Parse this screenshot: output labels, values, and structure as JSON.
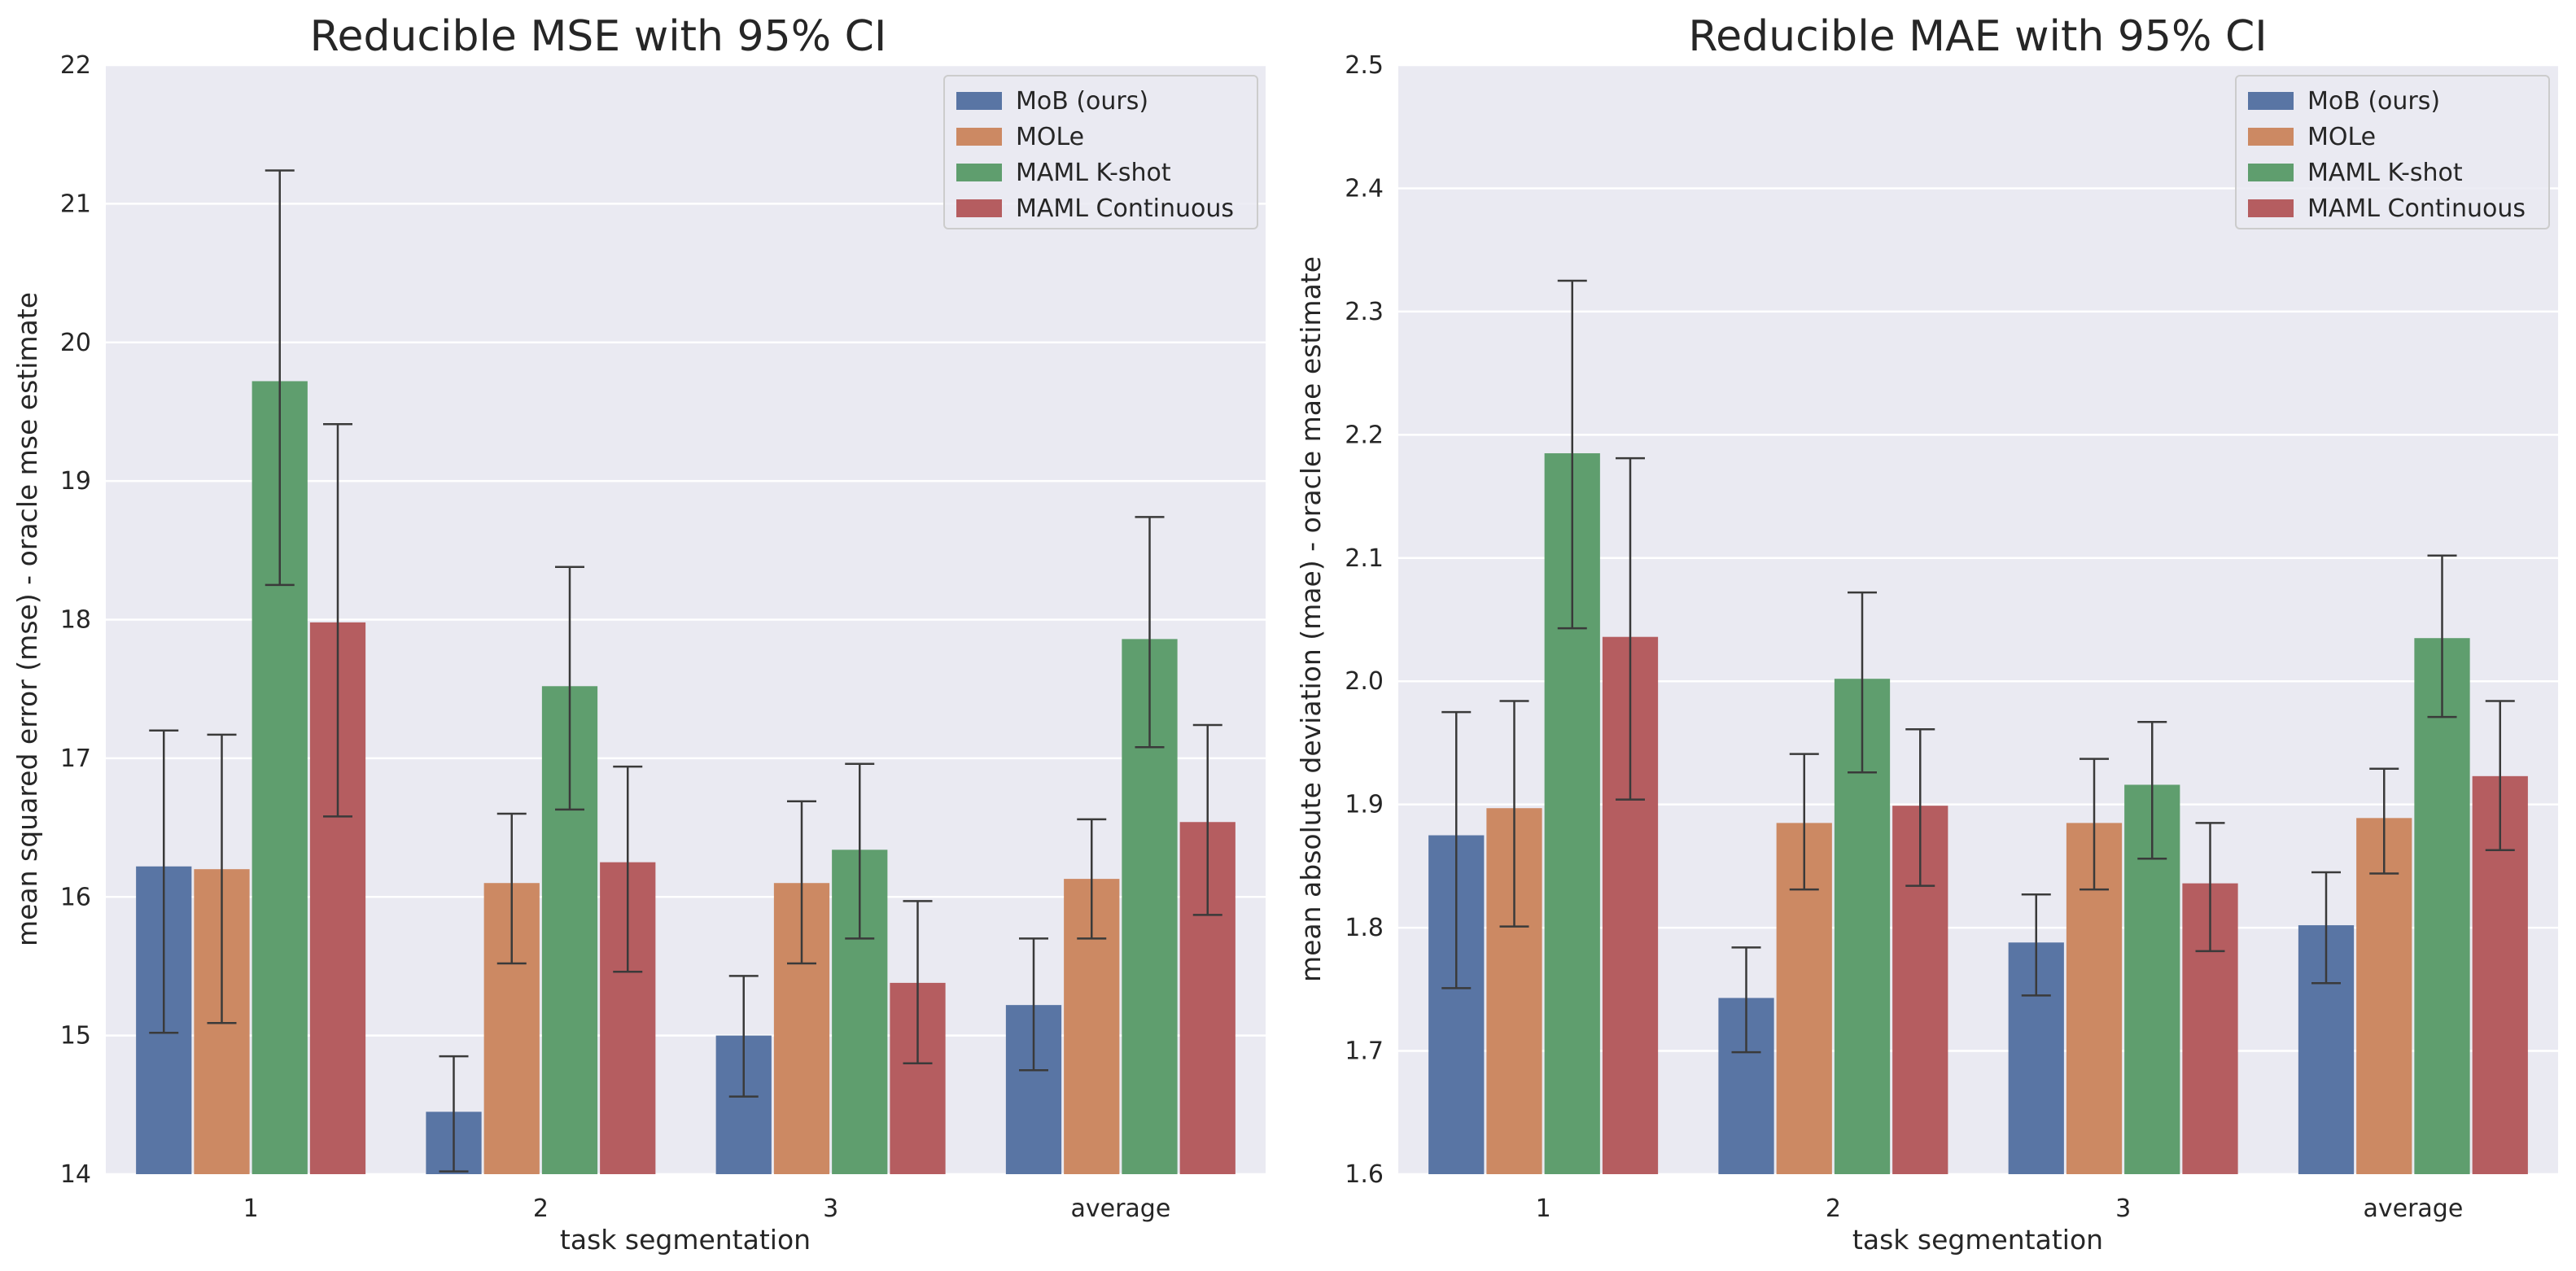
{
  "colors": {
    "plot_background": "#EAEAF2",
    "grid": "#FFFFFF",
    "error_bar": "#3A3A3A"
  },
  "chart_data": [
    {
      "type": "bar",
      "title": "Reducible MSE with 95% CI",
      "xlabel": "task segmentation",
      "ylabel": "mean squared error (mse) - oracle mse estimate",
      "categories": [
        "1",
        "2",
        "3",
        "average"
      ],
      "ylim": [
        14,
        22
      ],
      "yticks": [
        "14",
        "15",
        "16",
        "17",
        "18",
        "19",
        "20",
        "21",
        "22"
      ],
      "legend_position": "top-right",
      "series": [
        {
          "name": "MoB (ours)",
          "color": "#5975A4",
          "values": [
            16.22,
            14.45,
            15.0,
            15.22
          ],
          "ci_low": [
            15.02,
            14.02,
            14.56,
            14.75
          ],
          "ci_high": [
            17.2,
            14.85,
            15.43,
            15.7
          ]
        },
        {
          "name": "MOLe",
          "color": "#CC8963",
          "values": [
            16.2,
            16.1,
            16.1,
            16.13
          ],
          "ci_low": [
            15.09,
            15.52,
            15.52,
            15.7
          ],
          "ci_high": [
            17.17,
            16.6,
            16.69,
            16.56
          ]
        },
        {
          "name": "MAML K-shot",
          "color": "#5F9E6E",
          "values": [
            19.72,
            17.52,
            16.34,
            17.86
          ],
          "ci_low": [
            18.25,
            16.63,
            15.7,
            17.08
          ],
          "ci_high": [
            21.24,
            18.38,
            16.96,
            18.74
          ]
        },
        {
          "name": "MAML Continuous",
          "color": "#B55D60",
          "values": [
            17.98,
            16.25,
            15.38,
            16.54
          ],
          "ci_low": [
            16.58,
            15.46,
            14.8,
            15.87
          ],
          "ci_high": [
            19.41,
            16.94,
            15.97,
            17.24
          ]
        }
      ]
    },
    {
      "type": "bar",
      "title": "Reducible MAE with 95% CI",
      "xlabel": "task segmentation",
      "ylabel": "mean absolute deviation (mae) - oracle mae estimate",
      "categories": [
        "1",
        "2",
        "3",
        "average"
      ],
      "ylim": [
        1.6,
        2.5
      ],
      "yticks": [
        "1.6",
        "1.7",
        "1.8",
        "1.9",
        "2.0",
        "2.1",
        "2.2",
        "2.3",
        "2.4",
        "2.5"
      ],
      "legend_position": "top-right",
      "series": [
        {
          "name": "MoB (ours)",
          "color": "#5975A4",
          "values": [
            1.875,
            1.743,
            1.788,
            1.802
          ],
          "ci_low": [
            1.751,
            1.699,
            1.745,
            1.755
          ],
          "ci_high": [
            1.975,
            1.784,
            1.827,
            1.845
          ]
        },
        {
          "name": "MOLe",
          "color": "#CC8963",
          "values": [
            1.897,
            1.885,
            1.885,
            1.889
          ],
          "ci_low": [
            1.801,
            1.831,
            1.831,
            1.844
          ],
          "ci_high": [
            1.984,
            1.941,
            1.937,
            1.929
          ]
        },
        {
          "name": "MAML K-shot",
          "color": "#5F9E6E",
          "values": [
            2.185,
            2.002,
            1.916,
            2.035
          ],
          "ci_low": [
            2.043,
            1.926,
            1.856,
            1.971
          ],
          "ci_high": [
            2.325,
            2.072,
            1.967,
            2.102
          ]
        },
        {
          "name": "MAML Continuous",
          "color": "#B55D60",
          "values": [
            2.036,
            1.899,
            1.836,
            1.923
          ],
          "ci_low": [
            1.904,
            1.834,
            1.781,
            1.863
          ],
          "ci_high": [
            2.181,
            1.961,
            1.885,
            1.984
          ]
        }
      ]
    }
  ]
}
